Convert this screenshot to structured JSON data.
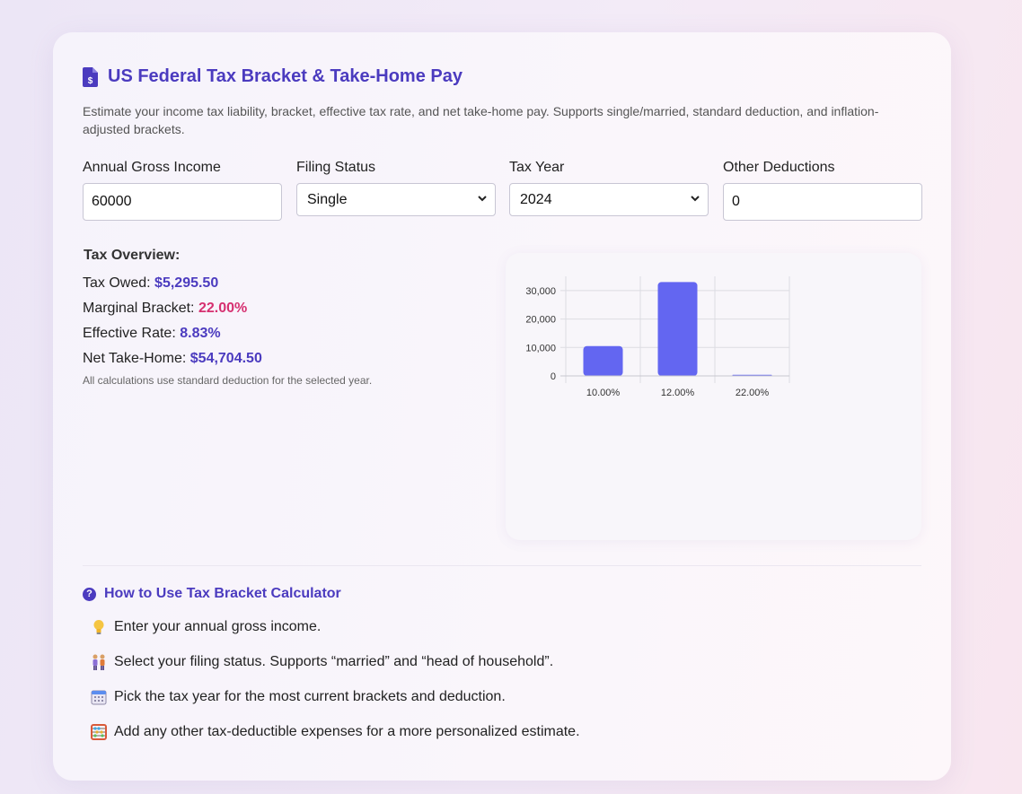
{
  "header": {
    "title": "US Federal Tax Bracket & Take-Home Pay",
    "subtitle": "Estimate your income tax liability, bracket, effective tax rate, and net take-home pay. Supports single/married, standard deduction, and inflation-adjusted brackets."
  },
  "form": {
    "income": {
      "label": "Annual Gross Income",
      "value": "60000"
    },
    "filing_status": {
      "label": "Filing Status",
      "value": "Single"
    },
    "tax_year": {
      "label": "Tax Year",
      "value": "2024"
    },
    "other_deductions": {
      "label": "Other Deductions",
      "value": "0"
    }
  },
  "overview": {
    "title": "Tax Overview:",
    "tax_owed_label": "Tax Owed:",
    "tax_owed_value": "$5,295.50",
    "marginal_label": "Marginal Bracket:",
    "marginal_value": "22.00%",
    "effective_label": "Effective Rate:",
    "effective_value": "8.83%",
    "net_label": "Net Take-Home:",
    "net_value": "$54,704.50",
    "note": "All calculations use standard deduction for the selected year."
  },
  "colors": {
    "accent": "#4b3bbf",
    "pink": "#d63070",
    "bar": "#6366f1"
  },
  "chart_data": {
    "type": "bar",
    "categories": [
      "10.00%",
      "12.00%",
      "22.00%"
    ],
    "values": [
      10500,
      33000,
      300
    ],
    "ylim": [
      0,
      35000
    ],
    "yticks": [
      0,
      10000,
      20000,
      30000
    ],
    "ytick_labels": [
      "0",
      "10,000",
      "20,000",
      "30,000"
    ],
    "grid": true,
    "legend": "none"
  },
  "howto": {
    "title": "How to Use Tax Bracket Calculator",
    "steps": [
      {
        "icon": "lightbulb-icon",
        "text": "Enter your annual gross income."
      },
      {
        "icon": "people-icon",
        "text": "Select your filing status. Supports “married” and “head of household”."
      },
      {
        "icon": "calendar-icon",
        "text": "Pick the tax year for the most current brackets and deduction."
      },
      {
        "icon": "abacus-icon",
        "text": "Add any other tax-deductible expenses for a more personalized estimate."
      }
    ]
  }
}
